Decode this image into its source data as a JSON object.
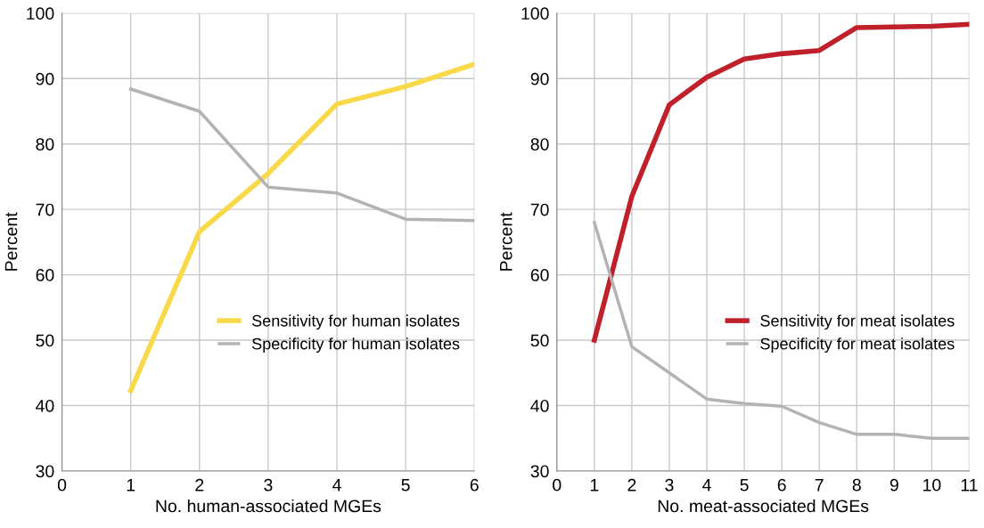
{
  "chart_data": [
    {
      "type": "line",
      "xlabel": "No. human-associated MGEs",
      "ylabel": "Percent",
      "x": [
        1,
        2,
        3,
        4,
        5,
        6
      ],
      "series": [
        {
          "name": "Sensitivity for human isolates",
          "color": "#f9d949",
          "values": [
            42.3,
            66.6,
            75.5,
            86.1,
            88.8,
            92.2
          ]
        },
        {
          "name": "Specificity for human isolates",
          "color": "#b3b3b3",
          "values": [
            88.4,
            85.0,
            73.4,
            72.5,
            68.5,
            68.3
          ]
        }
      ],
      "xlim": [
        0,
        6
      ],
      "xticks": [
        0,
        1,
        2,
        3,
        4,
        5,
        6
      ],
      "ylim": [
        30,
        100
      ],
      "yticks": [
        30,
        40,
        50,
        60,
        70,
        80,
        90,
        100
      ],
      "grid": true,
      "legend": "right",
      "marker": "none",
      "line_style": "solid"
    },
    {
      "type": "line",
      "xlabel": "No. meat-associated MGEs",
      "ylabel": "Percent",
      "x": [
        1,
        2,
        3,
        4,
        5,
        6,
        7,
        8,
        9,
        10,
        11
      ],
      "series": [
        {
          "name": "Sensitivity for meat isolates",
          "color": "#c0202a",
          "values": [
            50,
            72,
            86,
            90.2,
            93,
            93.8,
            94.3,
            97.8,
            97.9,
            98,
            98.3
          ]
        },
        {
          "name": "Specificity for meat isolates",
          "color": "#b3b3b3",
          "values": [
            68,
            49,
            45,
            41,
            40.3,
            39.9,
            37.4,
            35.6,
            35.6,
            35,
            35
          ]
        }
      ],
      "xlim": [
        0,
        11
      ],
      "xticks": [
        0,
        1,
        2,
        3,
        4,
        5,
        6,
        7,
        8,
        9,
        10,
        11
      ],
      "ylim": [
        30,
        100
      ],
      "yticks": [
        30,
        40,
        50,
        60,
        70,
        80,
        90,
        100
      ],
      "grid": true,
      "legend": "right",
      "marker": "none",
      "line_style": "solid"
    }
  ]
}
